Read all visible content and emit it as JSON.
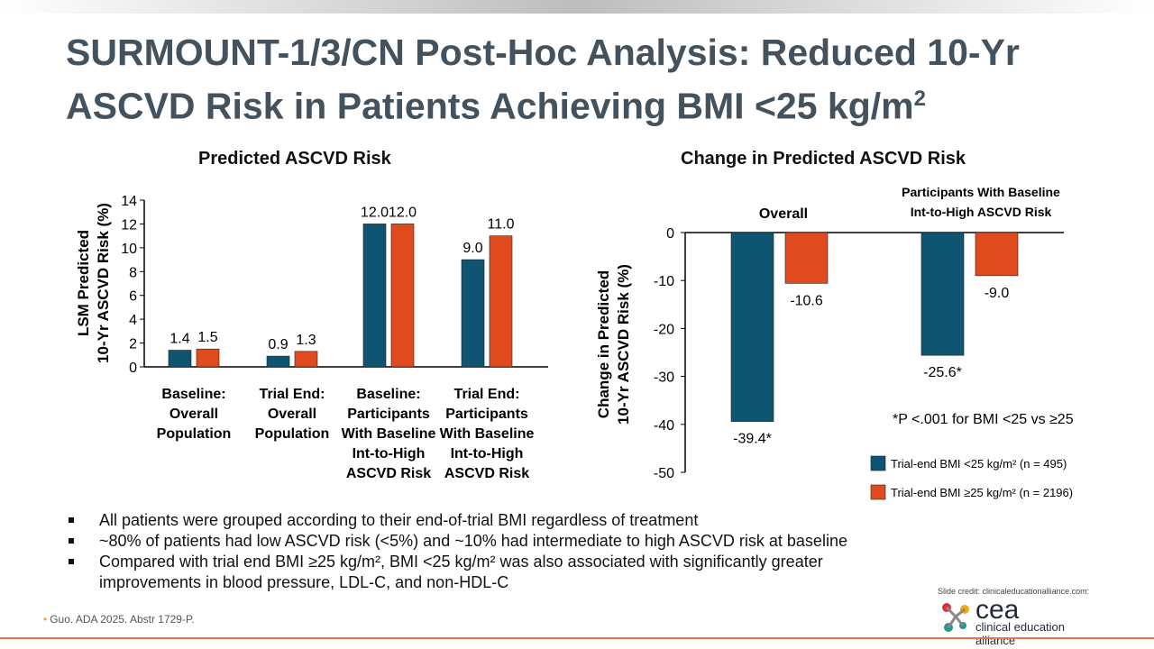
{
  "title": "SURMOUNT-1/3/CN Post-Hoc Analysis: Reduced 10-Yr ASCVD Risk in Patients Achieving BMI <25 kg/m",
  "title_sup": "2",
  "colors": {
    "teal": "#0f5470",
    "orange": "#e04a1f"
  },
  "chart_data": [
    {
      "type": "bar",
      "title": "Predicted ASCVD Risk",
      "ylabel": [
        "LSM Predicted",
        "10-Yr ASCVD Risk (%)"
      ],
      "ylim": [
        0,
        14
      ],
      "yticks": [
        0,
        2,
        4,
        6,
        8,
        10,
        12,
        14
      ],
      "categories": [
        [
          "Baseline:",
          "Overall",
          "Population"
        ],
        [
          "Trial End:",
          "Overall",
          "Population"
        ],
        [
          "Baseline:",
          "Participants",
          "With Baseline",
          "Int-to-High",
          "ASCVD Risk"
        ],
        [
          "Trial End:",
          "Participants",
          "With Baseline",
          "Int-to-High",
          "ASCVD Risk"
        ]
      ],
      "series": [
        {
          "name": "Trial-end BMI <25 kg/m² (n = 495)",
          "values": [
            1.4,
            0.9,
            12.0,
            9.0
          ],
          "labels": [
            "1.4",
            "0.9",
            "12.0",
            "9.0"
          ]
        },
        {
          "name": "Trial-end BMI ≥25 kg/m² (n = 2196)",
          "values": [
            1.5,
            1.3,
            12.0,
            11.0
          ],
          "labels": [
            "1.5",
            "1.3",
            "12.0",
            "11.0"
          ]
        }
      ]
    },
    {
      "type": "bar",
      "title": "Change in Predicted ASCVD Risk",
      "ylabel": [
        "Change in Predicted",
        "10-Yr ASCVD Risk (%)"
      ],
      "ylim": [
        -50,
        0
      ],
      "yticks": [
        0,
        -10,
        -20,
        -30,
        -40,
        -50
      ],
      "categories": [
        [
          "Overall"
        ],
        [
          "Participants With Baseline",
          "Int-to-High ASCVD Risk"
        ]
      ],
      "series": [
        {
          "name": "Trial-end BMI <25 kg/m² (n = 495)",
          "values": [
            -39.4,
            -25.6
          ],
          "labels": [
            "-39.4*",
            "-25.6*"
          ]
        },
        {
          "name": "Trial-end BMI ≥25 kg/m² (n = 2196)",
          "values": [
            -10.6,
            -9.0
          ],
          "labels": [
            "-10.6",
            "-9.0"
          ]
        }
      ],
      "footnote": "*P <.001 for BMI <25 vs ≥25",
      "legend": [
        "Trial-end BMI <25 kg/m² (n = 495)",
        "Trial-end BMI ≥25 kg/m² (n = 2196)"
      ]
    }
  ],
  "bullets": [
    "All patients were grouped according to their end-of-trial BMI regardless of treatment",
    "~80% of patients had low ASCVD risk (<5%) and ~10% had intermediate to high ASCVD risk at baseline",
    "Compared with trial end BMI ≥25 kg/m², BMI <25 kg/m² was also associated with significantly greater improvements in blood pressure, LDL-C, and non-HDL-C"
  ],
  "reference": "Guo. ADA 2025. Abstr 1729-P.",
  "credit": "Slide credit: clinicaleducationalliance.com:",
  "logo": {
    "short": "cea",
    "full": "clinical education alliance"
  }
}
